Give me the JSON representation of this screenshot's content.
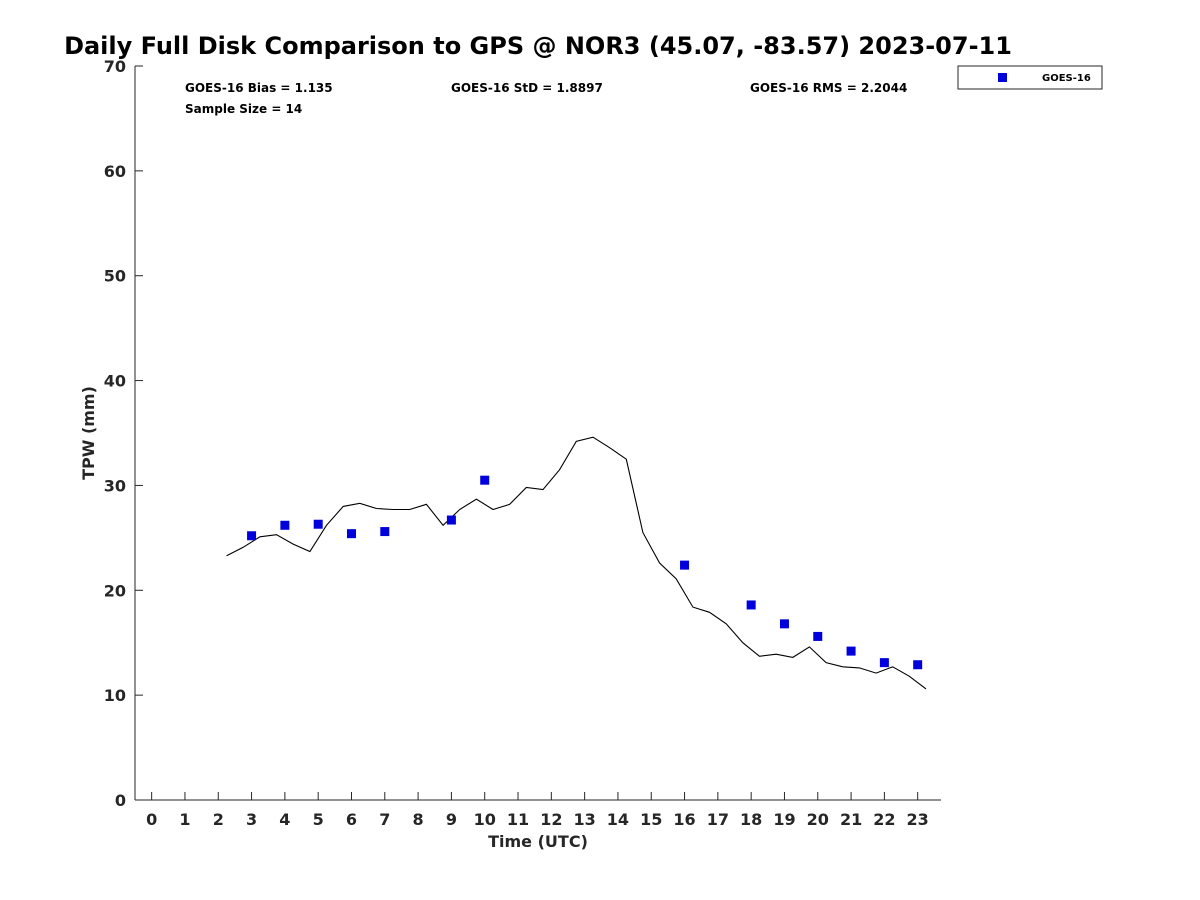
{
  "chart_data": {
    "type": "scatter",
    "title": "Daily Full Disk Comparison to GPS @ NOR3 (45.07, -83.57) 2023-07-11",
    "xlabel": "Time (UTC)",
    "ylabel": "TPW (mm)",
    "xlim": [
      -0.5,
      23.7
    ],
    "ylim": [
      0,
      70
    ],
    "x_ticks": [
      "0",
      "1",
      "2",
      "3",
      "4",
      "5",
      "6",
      "7",
      "8",
      "9",
      "10",
      "11",
      "12",
      "13",
      "14",
      "15",
      "16",
      "17",
      "18",
      "19",
      "20",
      "21",
      "22",
      "23"
    ],
    "y_ticks": [
      "0",
      "10",
      "20",
      "30",
      "40",
      "50",
      "60",
      "70"
    ],
    "grid": false,
    "legend_position": "top-right",
    "stats": {
      "bias": "GOES-16 Bias = 1.135",
      "std": "GOES-16 StD = 1.8897",
      "rms": "GOES-16 RMS = 2.2044",
      "sample": "Sample Size = 14"
    },
    "series": [
      {
        "name": "GOES-16",
        "marker": "square",
        "color": "#0000dd",
        "x": [
          3,
          4,
          5,
          6,
          7,
          9,
          10,
          16,
          18,
          19,
          20,
          21,
          22,
          23
        ],
        "y": [
          25.2,
          26.2,
          26.3,
          25.4,
          25.6,
          26.7,
          30.5,
          22.4,
          18.6,
          16.8,
          15.6,
          14.2,
          13.1,
          12.9
        ]
      },
      {
        "marker": "line",
        "color": "#000000",
        "x": [
          2.25,
          2.75,
          3.25,
          3.75,
          4.25,
          4.75,
          5.25,
          5.75,
          6.25,
          6.75,
          7.25,
          7.75,
          8.25,
          8.75,
          9.25,
          9.75,
          10.25,
          10.75,
          11.25,
          11.75,
          12.25,
          12.75,
          13.25,
          13.75,
          14.25,
          14.75,
          15.25,
          15.75,
          16.25,
          16.75,
          17.25,
          17.75,
          18.25,
          18.75,
          19.25,
          19.75,
          20.25,
          20.75,
          21.25,
          21.75,
          22.25,
          22.75,
          23.25
        ],
        "y": [
          23.3,
          24.1,
          25.1,
          25.3,
          24.4,
          23.7,
          26.2,
          28.0,
          28.3,
          27.8,
          27.7,
          27.7,
          28.2,
          26.2,
          27.7,
          28.7,
          27.7,
          28.2,
          29.8,
          29.6,
          31.5,
          34.2,
          34.6,
          33.6,
          32.5,
          25.5,
          22.6,
          21.1,
          18.4,
          17.9,
          16.8,
          15.0,
          13.7,
          13.9,
          13.6,
          14.6,
          13.1,
          12.7,
          12.6,
          12.1,
          12.7,
          11.8,
          10.6
        ]
      }
    ]
  }
}
